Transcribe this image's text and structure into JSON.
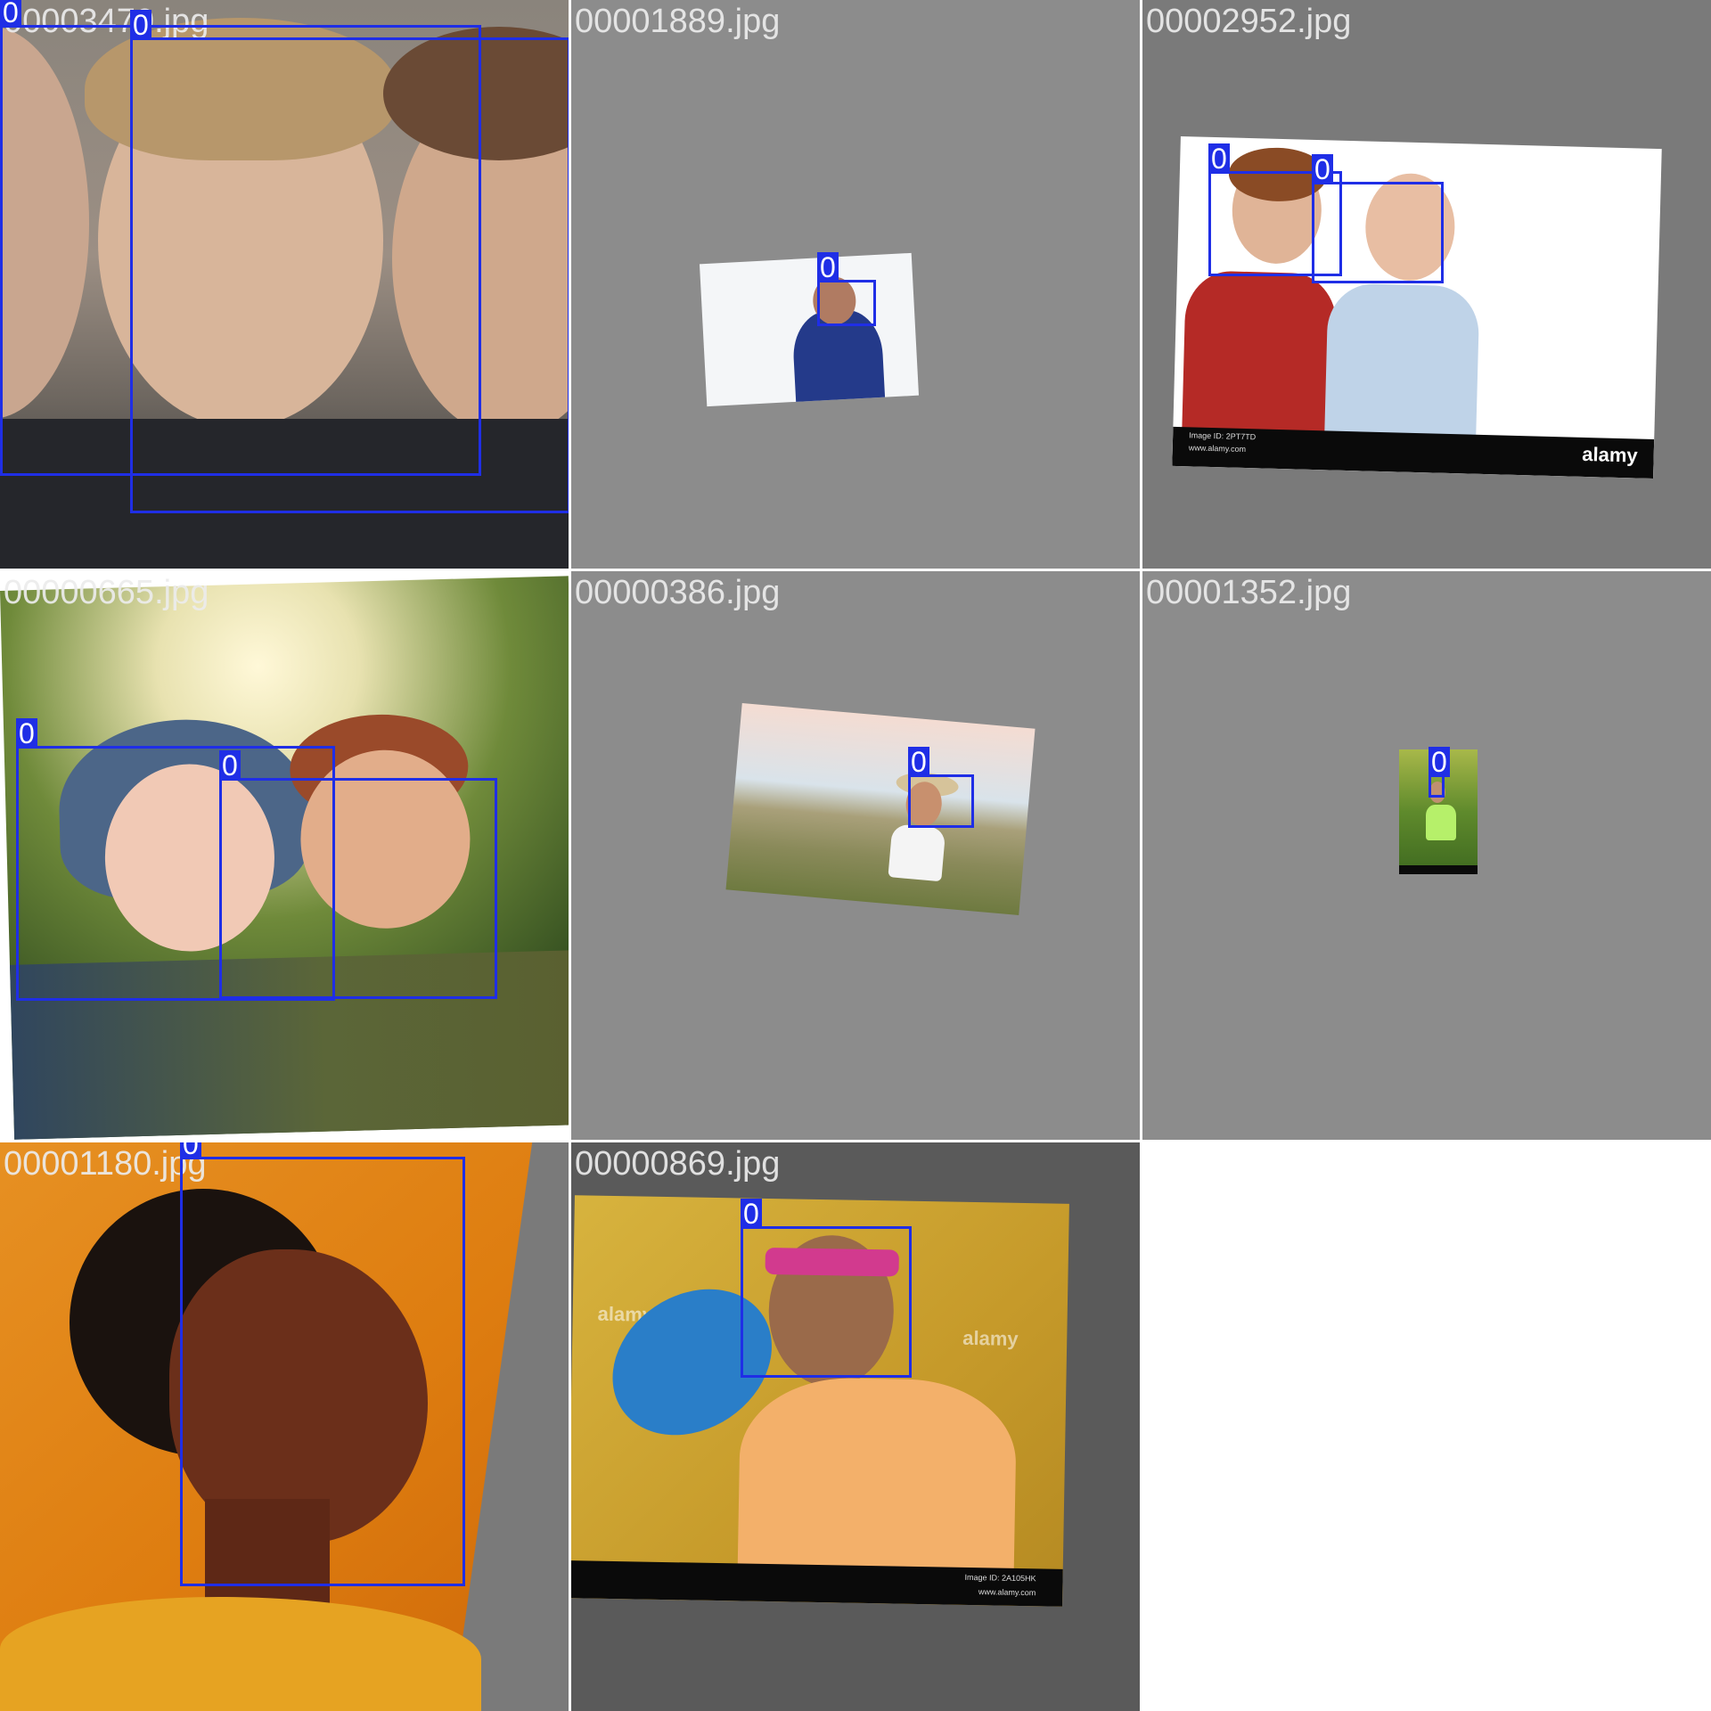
{
  "tiles": [
    {
      "filename": "00003470.jpg",
      "labels": [
        "0",
        "0"
      ]
    },
    {
      "filename": "00001889.jpg",
      "labels": [
        "0"
      ]
    },
    {
      "filename": "00002952.jpg",
      "labels": [
        "0",
        "0"
      ]
    },
    {
      "filename": "00000665.jpg",
      "labels": [
        "0",
        "0"
      ]
    },
    {
      "filename": "00000386.jpg",
      "labels": [
        "0"
      ]
    },
    {
      "filename": "00001352.jpg",
      "labels": [
        "0"
      ]
    },
    {
      "filename": "00001180.jpg",
      "labels": [
        "0"
      ]
    },
    {
      "filename": "00000869.jpg",
      "labels": [
        "0"
      ]
    }
  ],
  "watermarks": {
    "alamy": "alamy",
    "image_id_2952": "Image ID: 2PT7TD",
    "site_2952": "www.alamy.com",
    "image_id_869": "Image ID: 2A105HK",
    "site_869": "www.alamy.com"
  },
  "colors": {
    "bbox": "#1f2ee6",
    "tile_bg": "#8c8c8c"
  }
}
